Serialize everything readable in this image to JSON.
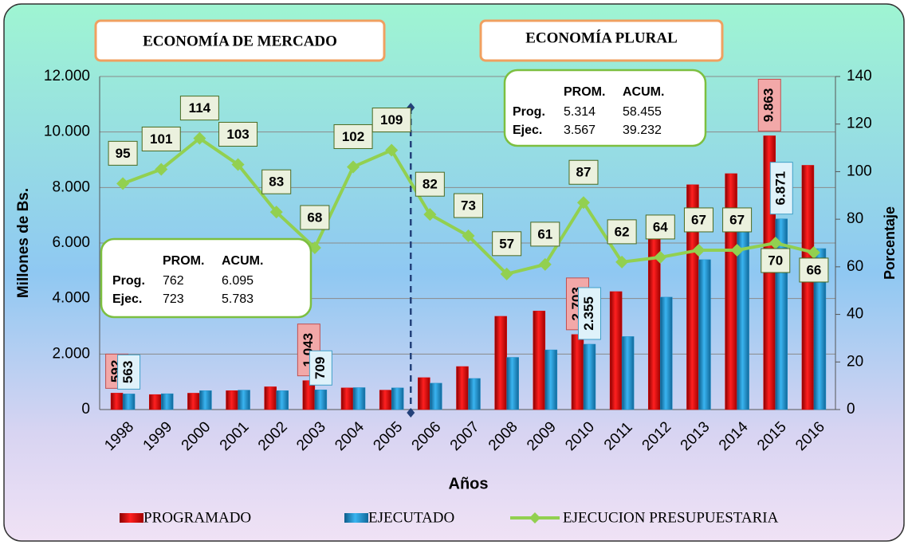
{
  "chart_data": {
    "type": "bar",
    "x_label": "Años",
    "y_label": "Millones de Bs.",
    "y2_label": "Porcentaje",
    "categories": [
      "1998",
      "1999",
      "2000",
      "2001",
      "2002",
      "2003",
      "2004",
      "2005",
      "2006",
      "2007",
      "2008",
      "2009",
      "2010",
      "2011",
      "2012",
      "2013",
      "2014",
      "2015",
      "2016"
    ],
    "series": [
      {
        "name": "PROGRAMADO",
        "color": "#e00000",
        "values": [
          592,
          540,
          590,
          680,
          820,
          1043,
          780,
          700,
          1150,
          1550,
          3360,
          3550,
          2703,
          4250,
          6250,
          8100,
          8500,
          9863,
          8800
        ],
        "value_labels": [
          "592",
          null,
          null,
          null,
          null,
          "1.043",
          null,
          null,
          null,
          null,
          null,
          null,
          "2.703",
          null,
          null,
          null,
          null,
          "9.863",
          null
        ]
      },
      {
        "name": "EJECUTADO",
        "color": "#1e8fc8",
        "values": [
          563,
          570,
          680,
          700,
          680,
          709,
          790,
          780,
          950,
          1120,
          1880,
          2150,
          2355,
          2630,
          4050,
          5400,
          6500,
          6871,
          5800
        ],
        "value_labels": [
          "563",
          null,
          null,
          null,
          null,
          "709",
          null,
          null,
          null,
          null,
          null,
          null,
          "2.355",
          null,
          null,
          null,
          null,
          "6.871",
          null
        ]
      },
      {
        "name": "EJECUCION PRESUPUESTARIA",
        "color": "#92d050",
        "type": "line",
        "axis": "y2",
        "values": [
          95,
          101,
          114,
          103,
          83,
          68,
          102,
          109,
          82,
          73,
          57,
          61,
          87,
          62,
          64,
          67,
          67,
          70,
          66
        ]
      }
    ],
    "ylim": [
      0,
      12000
    ],
    "yticks": [
      0,
      {
        "value": 2000,
        "label": "2.000"
      },
      {
        "value": 4000,
        "label": "4.000"
      },
      {
        "value": 6000,
        "label": "6.000"
      },
      {
        "value": 8000,
        "label": "8.000"
      },
      {
        "value": 10000,
        "label": "10.000"
      },
      {
        "value": 12000,
        "label": "12.000"
      }
    ],
    "y2lim": [
      0,
      140
    ],
    "y2ticks": [
      0,
      20,
      40,
      60,
      80,
      100,
      120,
      140
    ],
    "grid": true,
    "legend": "bottom",
    "annotations": {
      "periods": [
        "ECONOMÍA DE MERCADO",
        "ECONOMÍA PLURAL"
      ],
      "summaries": [
        {
          "header": [
            "PROM.",
            "ACUM."
          ],
          "rows": [
            [
              "Prog.",
              "762",
              "6.095"
            ],
            [
              "Ejec.",
              "723",
              "5.783"
            ]
          ]
        },
        {
          "header": [
            "PROM.",
            "ACUM."
          ],
          "rows": [
            [
              "Prog.",
              "5.314",
              "58.455"
            ],
            [
              "Ejec.",
              "3.567",
              "39.232"
            ]
          ]
        }
      ]
    }
  }
}
